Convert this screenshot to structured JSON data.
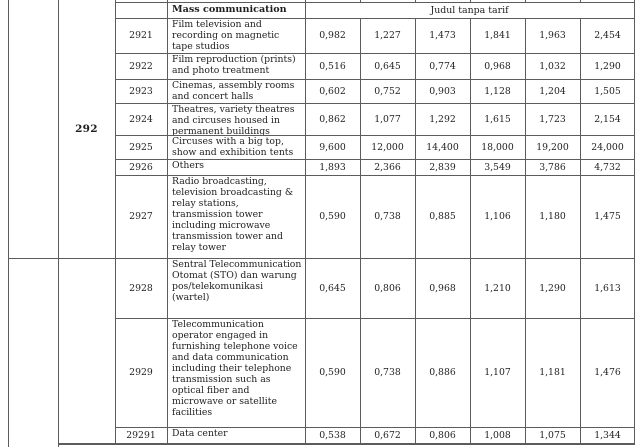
{
  "table": {
    "group_code": "292",
    "header": {
      "category_label": "Mass communication",
      "values_label": "Judul tanpa tarif"
    },
    "rows": [
      {
        "code": "2921",
        "description": "Film television and recording on magnetic tape studios",
        "values": [
          "0,982",
          "1,227",
          "1,473",
          "1,841",
          "1,963",
          "2,454"
        ]
      },
      {
        "code": "2922",
        "description": "Film reproduction (prints) and photo treatment",
        "values": [
          "0,516",
          "0,645",
          "0,774",
          "0,968",
          "1,032",
          "1,290"
        ]
      },
      {
        "code": "2923",
        "description": "Cinemas, assembly rooms and concert halls",
        "values": [
          "0,602",
          "0,752",
          "0,903",
          "1,128",
          "1,204",
          "1,505"
        ]
      },
      {
        "code": "2924",
        "description": "Theatres, variety theatres and circuses housed in permanent buildings",
        "values": [
          "0,862",
          "1,077",
          "1,292",
          "1,615",
          "1,723",
          "2,154"
        ]
      },
      {
        "code": "2925",
        "description": "Circuses with a big top, show and exhibition tents",
        "values": [
          "9,600",
          "12,000",
          "14,400",
          "18,000",
          "19,200",
          "24,000"
        ]
      },
      {
        "code": "2926",
        "description": "Others",
        "values": [
          "1,893",
          "2,366",
          "2,839",
          "3,549",
          "3,786",
          "4,732"
        ]
      },
      {
        "code": "2927",
        "description": "Radio broadcasting, television broadcasting & relay stations, transmission tower including microwave transmission tower and relay tower",
        "values": [
          "0,590",
          "0,738",
          "0,885",
          "1,106",
          "1,180",
          "1,475"
        ]
      },
      {
        "code": "2928",
        "description": "Sentral Telecommunication Otomat (STO) dan warung pos/telekomunikasi (wartel)",
        "values": [
          "0,645",
          "0,806",
          "0,968",
          "1,210",
          "1,290",
          "1,613"
        ]
      },
      {
        "code": "2929",
        "description": "Telecommunication operator engaged in furnishing telephone voice and data communication including their telephone transmission such as optical fiber and microwave or satellite facilities",
        "values": [
          "0,590",
          "0,738",
          "0,886",
          "1,107",
          "1,181",
          "1,476"
        ]
      },
      {
        "code": "29291",
        "description": "Data center",
        "values": [
          "0,538",
          "0,672",
          "0,806",
          "1,008",
          "1,075",
          "1,344"
        ]
      }
    ]
  },
  "colors": {
    "border": "#5c5c5c",
    "text": "#1f1f1f",
    "background": "#ffffff"
  }
}
